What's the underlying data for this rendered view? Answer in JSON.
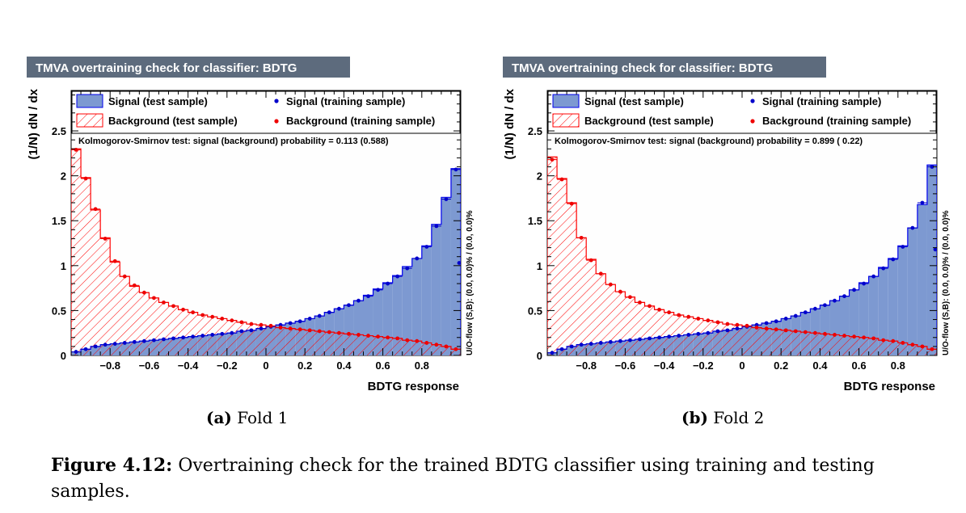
{
  "colors": {
    "title_bg": "#5d6b7d",
    "signal_fill": "#7d99d1",
    "signal_line": "#0000ee",
    "signal_point": "#0000cc",
    "background_hatch": "#ff0000",
    "background_point": "#ee0000",
    "frame_bg": "#fefefe"
  },
  "chart_data": [
    {
      "type": "histogram",
      "title": "TMVA overtraining check for classifier: BDTG",
      "xlabel": "BDTG response",
      "ylabel": "(1/N) dN / dx",
      "xlim": [
        -1.0,
        1.0
      ],
      "ylim": [
        0,
        2.95
      ],
      "xticks": [
        "-0.8",
        "-0.6",
        "-0.4",
        "-0.2",
        "0",
        "0.2",
        "0.4",
        "0.6",
        "0.8"
      ],
      "yticks": [
        "0",
        "0.5",
        "1",
        "1.5",
        "2",
        "2.5"
      ],
      "legend": {
        "signal_test": "Signal (test sample)",
        "signal_train": "Signal (training sample)",
        "background_test": "Background (test sample)",
        "background_train": "Background (training sample)"
      },
      "ks_text": "Kolmogorov-Smirnov test: signal (background) probability = 0.113 (0.588)",
      "overflow_text": "U/O-flow (S,B): (0.0, 0.0)% / (0.0, 0.0)%",
      "bins": 40,
      "series": [
        {
          "name": "Signal (test sample)",
          "values": [
            0.04,
            0.07,
            0.1,
            0.12,
            0.13,
            0.14,
            0.15,
            0.16,
            0.17,
            0.18,
            0.19,
            0.2,
            0.21,
            0.22,
            0.23,
            0.24,
            0.25,
            0.27,
            0.28,
            0.3,
            0.32,
            0.34,
            0.36,
            0.38,
            0.41,
            0.44,
            0.48,
            0.52,
            0.56,
            0.61,
            0.67,
            0.74,
            0.81,
            0.89,
            0.99,
            1.08,
            1.22,
            1.46,
            1.76,
            2.08
          ]
        },
        {
          "name": "Signal (training sample)",
          "values": [
            0.04,
            0.07,
            0.1,
            0.12,
            0.13,
            0.14,
            0.15,
            0.16,
            0.17,
            0.18,
            0.19,
            0.2,
            0.21,
            0.22,
            0.23,
            0.24,
            0.25,
            0.27,
            0.28,
            0.3,
            0.32,
            0.34,
            0.36,
            0.38,
            0.41,
            0.44,
            0.48,
            0.52,
            0.56,
            0.61,
            0.66,
            0.73,
            0.8,
            0.88,
            0.97,
            1.08,
            1.21,
            1.44,
            1.74,
            2.07
          ]
        },
        {
          "name": "Background (test sample)",
          "values": [
            2.3,
            1.98,
            1.62,
            1.31,
            1.04,
            0.88,
            0.77,
            0.7,
            0.64,
            0.59,
            0.55,
            0.51,
            0.48,
            0.45,
            0.43,
            0.41,
            0.39,
            0.37,
            0.35,
            0.34,
            0.32,
            0.31,
            0.3,
            0.29,
            0.28,
            0.27,
            0.26,
            0.25,
            0.24,
            0.23,
            0.22,
            0.21,
            0.2,
            0.19,
            0.17,
            0.16,
            0.14,
            0.12,
            0.1,
            0.07
          ]
        },
        {
          "name": "Background (training sample)",
          "values": [
            2.29,
            1.97,
            1.63,
            1.3,
            1.05,
            0.88,
            0.78,
            0.7,
            0.64,
            0.59,
            0.55,
            0.51,
            0.48,
            0.45,
            0.43,
            0.41,
            0.39,
            0.37,
            0.35,
            0.34,
            0.33,
            0.31,
            0.3,
            0.29,
            0.28,
            0.27,
            0.26,
            0.25,
            0.24,
            0.23,
            0.22,
            0.21,
            0.2,
            0.19,
            0.17,
            0.16,
            0.14,
            0.12,
            0.1,
            0.07
          ]
        }
      ],
      "extra_points": {
        "signal_last_bin_point": 1.03
      }
    },
    {
      "type": "histogram",
      "title": "TMVA overtraining check for classifier: BDTG",
      "xlabel": "BDTG response",
      "ylabel": "(1/N) dN / dx",
      "xlim": [
        -1.0,
        1.0
      ],
      "ylim": [
        0,
        2.95
      ],
      "xticks": [
        "-0.8",
        "-0.6",
        "-0.4",
        "-0.2",
        "0",
        "0.2",
        "0.4",
        "0.6",
        "0.8"
      ],
      "yticks": [
        "0",
        "0.5",
        "1",
        "1.5",
        "2",
        "2.5"
      ],
      "legend": {
        "signal_test": "Signal (test sample)",
        "signal_train": "Signal (training sample)",
        "background_test": "Background (test sample)",
        "background_train": "Background (training sample)"
      },
      "ks_text": "Kolmogorov-Smirnov test: signal (background) probability = 0.899 ( 0.22)",
      "overflow_text": "U/O-flow (S,B): (0.0, 0.0)% / (0.0, 0.0)%",
      "bins": 40,
      "series": [
        {
          "name": "Signal (test sample)",
          "values": [
            0.03,
            0.07,
            0.1,
            0.12,
            0.13,
            0.14,
            0.15,
            0.16,
            0.17,
            0.18,
            0.19,
            0.2,
            0.21,
            0.22,
            0.23,
            0.24,
            0.25,
            0.27,
            0.28,
            0.3,
            0.32,
            0.34,
            0.36,
            0.38,
            0.41,
            0.44,
            0.48,
            0.52,
            0.56,
            0.61,
            0.66,
            0.73,
            0.81,
            0.88,
            0.98,
            1.08,
            1.22,
            1.42,
            1.68,
            2.12
          ]
        },
        {
          "name": "Signal (training sample)",
          "values": [
            0.03,
            0.07,
            0.1,
            0.12,
            0.13,
            0.14,
            0.15,
            0.16,
            0.17,
            0.18,
            0.19,
            0.2,
            0.21,
            0.22,
            0.23,
            0.24,
            0.25,
            0.27,
            0.28,
            0.3,
            0.32,
            0.34,
            0.36,
            0.38,
            0.41,
            0.44,
            0.48,
            0.52,
            0.56,
            0.61,
            0.66,
            0.73,
            0.8,
            0.88,
            0.97,
            1.07,
            1.21,
            1.42,
            1.7,
            2.1
          ]
        },
        {
          "name": "Background (test sample)",
          "values": [
            2.21,
            1.97,
            1.7,
            1.31,
            1.07,
            0.91,
            0.79,
            0.71,
            0.65,
            0.59,
            0.55,
            0.51,
            0.48,
            0.45,
            0.43,
            0.41,
            0.39,
            0.37,
            0.35,
            0.34,
            0.32,
            0.31,
            0.3,
            0.29,
            0.28,
            0.27,
            0.26,
            0.25,
            0.24,
            0.23,
            0.22,
            0.21,
            0.2,
            0.19,
            0.17,
            0.16,
            0.14,
            0.12,
            0.1,
            0.07
          ]
        },
        {
          "name": "Background (training sample)",
          "values": [
            2.18,
            1.96,
            1.69,
            1.31,
            1.06,
            0.91,
            0.79,
            0.71,
            0.65,
            0.59,
            0.55,
            0.51,
            0.48,
            0.45,
            0.43,
            0.41,
            0.39,
            0.37,
            0.35,
            0.34,
            0.33,
            0.31,
            0.3,
            0.29,
            0.28,
            0.27,
            0.26,
            0.25,
            0.24,
            0.23,
            0.22,
            0.21,
            0.2,
            0.19,
            0.17,
            0.16,
            0.14,
            0.12,
            0.1,
            0.07
          ]
        }
      ],
      "extra_points": {
        "signal_last_bin_point": 1.18
      }
    }
  ],
  "subfigures": [
    {
      "label": "(a)",
      "text": "Fold 1"
    },
    {
      "label": "(b)",
      "text": "Fold 2"
    }
  ],
  "caption": {
    "label": "Figure 4.12:",
    "text": "Overtraining check for the trained BDTG classifier using training and testing samples."
  }
}
